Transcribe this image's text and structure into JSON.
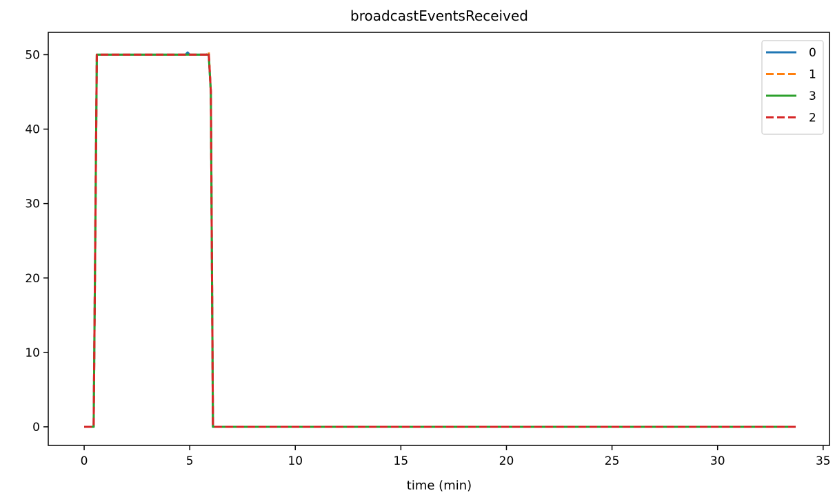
{
  "chart_data": {
    "type": "line",
    "title": "broadcastEventsReceived",
    "xlabel": "time (min)",
    "ylabel": "",
    "xlim": [
      -1.7,
      35.3
    ],
    "ylim": [
      -2.5,
      53
    ],
    "xticks": [
      0,
      5,
      10,
      15,
      20,
      25,
      30,
      35
    ],
    "yticks": [
      0,
      10,
      20,
      30,
      40,
      50
    ],
    "grid": false,
    "legend_position": "top-right",
    "series": [
      {
        "name": "0",
        "color": "#1f77b4",
        "style": "solid",
        "x": [
          0,
          0.45,
          0.6,
          1,
          2,
          3,
          4,
          4.8,
          4.9,
          5.0,
          5.5,
          5.9,
          6.0,
          6.1,
          7,
          10,
          15,
          20,
          25,
          30,
          33.7
        ],
        "y": [
          0,
          0,
          50,
          50,
          50,
          50,
          50,
          50,
          50.3,
          50,
          50,
          50,
          45,
          0,
          0,
          0,
          0,
          0,
          0,
          0,
          0
        ]
      },
      {
        "name": "1",
        "color": "#ff7f0e",
        "style": "dashed",
        "x": [
          0,
          0.45,
          0.6,
          1,
          2,
          3,
          4,
          5,
          5.5,
          5.8,
          5.9,
          6.0,
          6.1,
          7,
          10,
          15,
          20,
          25,
          30,
          33.7
        ],
        "y": [
          0,
          0,
          50,
          50,
          50,
          50,
          50,
          50,
          50,
          50,
          50.4,
          45,
          0,
          0,
          0,
          0,
          0,
          0,
          0,
          0
        ]
      },
      {
        "name": "3",
        "color": "#2ca02c",
        "style": "solid",
        "x": [
          0,
          0.45,
          0.6,
          1,
          2,
          3,
          4,
          5,
          5.5,
          5.9,
          6.0,
          6.1,
          7,
          10,
          15,
          20,
          25,
          30,
          33.7
        ],
        "y": [
          0,
          0,
          50,
          50,
          50,
          50,
          50,
          50,
          50,
          50,
          45,
          0,
          0,
          0,
          0,
          0,
          0,
          0,
          0
        ]
      },
      {
        "name": "2",
        "color": "#d62728",
        "style": "dashed",
        "x": [
          0,
          0.45,
          0.6,
          1,
          2,
          3,
          4,
          5,
          5.5,
          5.8,
          5.9,
          6.0,
          6.1,
          7,
          10,
          15,
          20,
          25,
          30,
          33.7
        ],
        "y": [
          0,
          0,
          50,
          50,
          50,
          50,
          50,
          50,
          50,
          50,
          50.3,
          45,
          0,
          0,
          0,
          0,
          0,
          0,
          0,
          0
        ]
      }
    ]
  }
}
